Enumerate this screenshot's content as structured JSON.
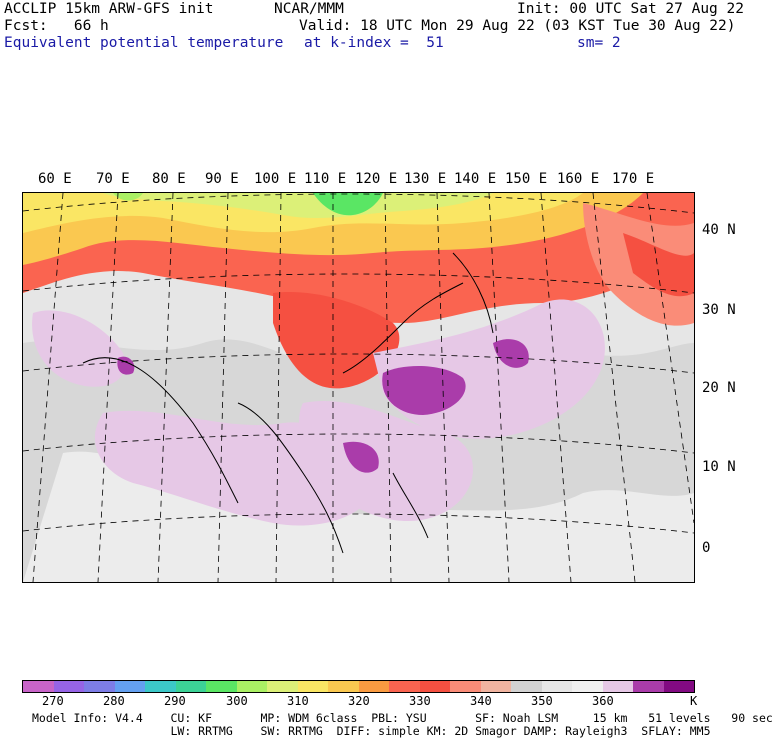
{
  "header": {
    "line1_left": "ACCLIP 15km ARW-GFS init",
    "line1_mid": "NCAR/MMM",
    "line1_right": "Init: 00 UTC Sat 27 Aug 22",
    "line2_left": "Fcst:   66 h",
    "line2_right": "Valid: 18 UTC Mon 29 Aug 22 (03 KST Tue 30 Aug 22)",
    "line3_field": "Equivalent potential temperature",
    "line3_level": "at k-index =  51",
    "line3_smooth": "sm= 2"
  },
  "map": {
    "lon_labels": [
      "60 E",
      "70 E",
      "80 E",
      "90 E",
      "100 E",
      "110 E",
      "120 E",
      "130 E",
      "140 E",
      "150 E",
      "160 E",
      "170 E"
    ],
    "lat_labels": [
      "40 N",
      "30 N",
      "20 N",
      "10 N",
      "0"
    ]
  },
  "colorbar": {
    "colors": [
      "#c864c8",
      "#9664e6",
      "#7d7de6",
      "#64a0f0",
      "#3cc8c8",
      "#3cd296",
      "#5ae664",
      "#aaf064",
      "#dcf078",
      "#fae664",
      "#fac850",
      "#fa9b41",
      "#fa6450",
      "#f55041",
      "#fa8c78",
      "#f0b4a0",
      "#d2d2d2",
      "#e6e6e6",
      "#f0f0f0",
      "#e6c8e6",
      "#aa3caa",
      "#820a82"
    ],
    "ticks": [
      "270",
      "280",
      "290",
      "300",
      "310",
      "320",
      "330",
      "340",
      "350",
      "360"
    ],
    "unit": "K"
  },
  "model_info": {
    "line1": "Model Info: V4.4    CU: KF       MP: WDM 6class  PBL: YSU       SF: Noah LSM     15 km   51 levels   90 sec",
    "line2": "                    LW: RRTMG    SW: RRTMG  DIFF: simple KM: 2D Smagor DAMP: Rayleigh3  SFLAY: MM5"
  }
}
